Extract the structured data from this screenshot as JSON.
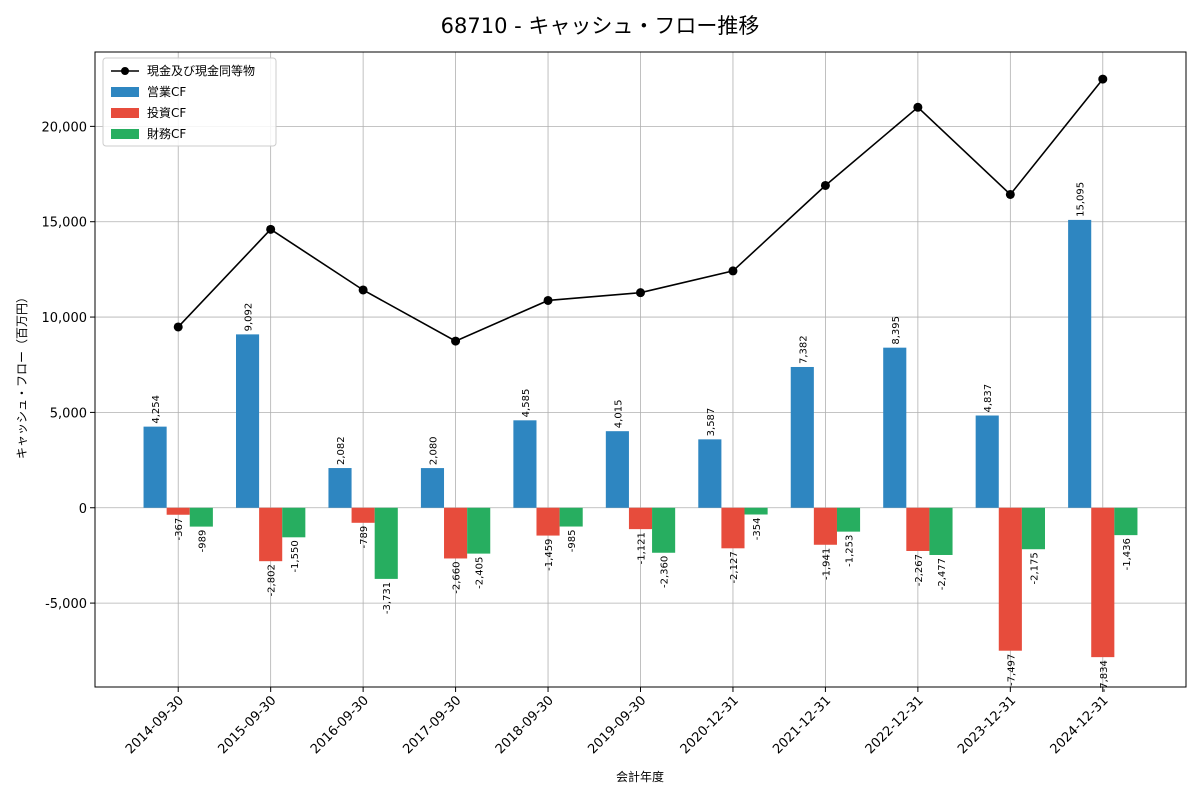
{
  "chart_data": {
    "type": "bar",
    "title": "68710 - キャッシュ・フロー推移",
    "xlabel": "会計年度",
    "ylabel": "キャッシュ・フロー（百万円）",
    "categories": [
      "2014-09-30",
      "2015-09-30",
      "2016-09-30",
      "2017-09-30",
      "2018-09-30",
      "2019-09-30",
      "2020-12-31",
      "2021-12-31",
      "2022-12-31",
      "2023-12-31",
      "2024-12-31"
    ],
    "ylim": [
      -9400,
      23900
    ],
    "yticks": [
      -5000,
      0,
      5000,
      10000,
      15000,
      20000
    ],
    "ytick_labels": [
      "-5,000",
      "0",
      "5,000",
      "10,000",
      "15,000",
      "20,000"
    ],
    "grid": true,
    "legend_position": "top-left",
    "series": [
      {
        "name": "営業CF",
        "kind": "bar",
        "color": "#2e86c1",
        "values": [
          4254,
          9092,
          2082,
          2080,
          4585,
          4015,
          3587,
          7382,
          8395,
          4837,
          15095
        ],
        "labels": [
          "4,254",
          "9,092",
          "2,082",
          "2,080",
          "4,585",
          "4,015",
          "3,587",
          "7,382",
          "8,395",
          "4,837",
          "15,095"
        ]
      },
      {
        "name": "投資CF",
        "kind": "bar",
        "color": "#e74c3c",
        "values": [
          -367,
          -2802,
          -789,
          -2660,
          -1459,
          -1121,
          -2127,
          -1941,
          -2267,
          -7497,
          -7834
        ],
        "labels": [
          "-367",
          "-2,802",
          "-789",
          "-2,660",
          "-1,459",
          "-1,121",
          "-2,127",
          "-1,941",
          "-2,267",
          "-7,497",
          "-7,834"
        ]
      },
      {
        "name": "財務CF",
        "kind": "bar",
        "color": "#27ae60",
        "values": [
          -989,
          -1550,
          -3731,
          -2405,
          -985,
          -2360,
          -354,
          -1253,
          -2477,
          -2175,
          -1436
        ],
        "labels": [
          "-989",
          "-1,550",
          "-3,731",
          "-2,405",
          "-985",
          "-2,360",
          "-354",
          "-1,253",
          "-2,477",
          "-2,175",
          "-1,436"
        ]
      },
      {
        "name": "現金及び現金同等物",
        "kind": "line",
        "color": "#000000",
        "values": [
          9480,
          14600,
          11420,
          8740,
          10870,
          11280,
          12420,
          16900,
          21000,
          16430,
          22480
        ]
      }
    ],
    "legend_order": [
      "現金及び現金同等物",
      "営業CF",
      "投資CF",
      "財務CF"
    ]
  }
}
